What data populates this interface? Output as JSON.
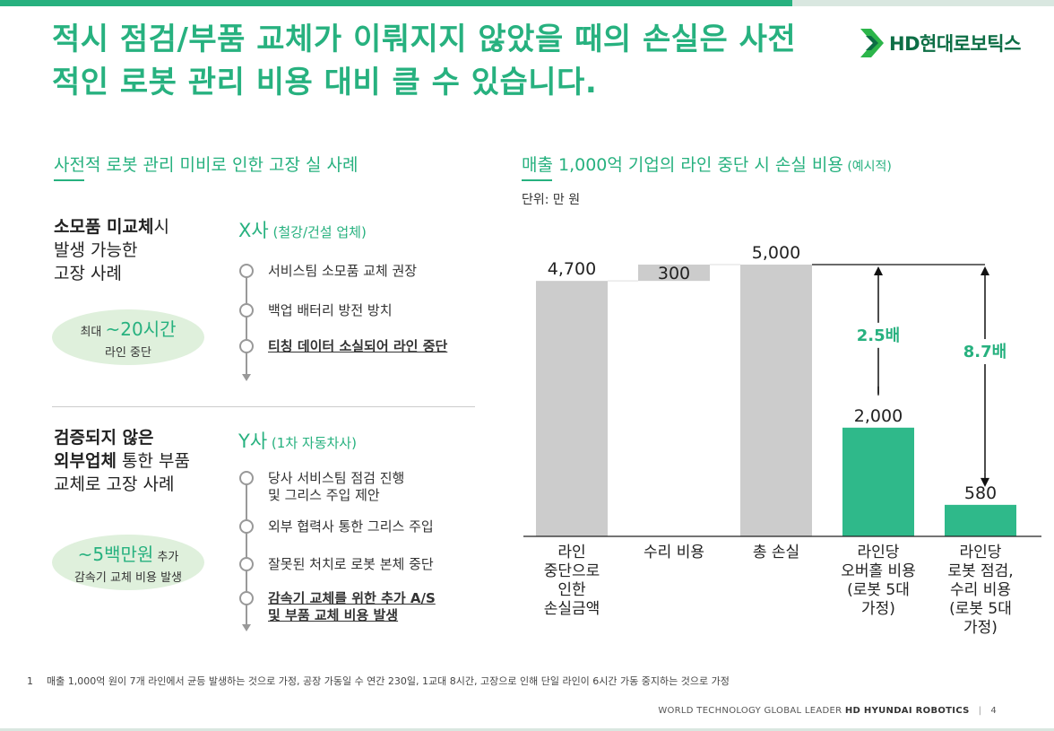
{
  "headline": "적시 점검/부품 교체가 이뤄지지 않았을 때의 손실은 사전적인 로봇 관리 비용 대비 클 수 있습니다.",
  "logo": {
    "text": "HD현대로보틱스",
    "colors": {
      "light": "#2cb54a",
      "dark": "#0d6e45"
    }
  },
  "left": {
    "title": "사전적 로봇 관리 미비로 인한 고장 실 사례",
    "case1": {
      "desc_bold": "소모품 미교체",
      "desc_rest1": "시",
      "desc_line2": "발생 가능한",
      "desc_line3": "고장 사례",
      "pill_prefix": "최대 ",
      "pill_big": "~20시간",
      "pill_line2": "라인 중단",
      "company": "X사",
      "company_sub": " (철강/건설 업체)",
      "steps": [
        "서비스팀 소모품 교체 권장",
        "백업 배터리 방전 방치",
        "티칭 데이터 소실되어 라인 중단"
      ]
    },
    "case2": {
      "desc_bold1": "검증되지 않은",
      "desc_bold2": "외부업체",
      "desc_rest2": " 통한 부품",
      "desc_line3": "교체로 고장 사례",
      "pill_big": "~5백만원",
      "pill_suffix": " 추가",
      "pill_line2": "감속기 교체 비용 발생",
      "company": "Y사",
      "company_sub": " (1차 자동차사)",
      "steps": [
        {
          "line1": "당사 서비스팀 점검 진행",
          "line2": "및 그리스 주입 제안"
        },
        {
          "line1": "외부 협력사 통한 그리스 주입",
          "line2": ""
        },
        {
          "line1": "잘못된 처치로 로봇 본체 중단",
          "line2": ""
        },
        {
          "line1": "감속기 교체를 위한 추가 A/S",
          "line2": "및 부품 교체 비용 발생"
        }
      ]
    }
  },
  "right": {
    "title": "매출 1,000억 기업의 라인 중단 시 손실 비용",
    "title_small": " (예시적)",
    "unit": "단위: 만 원"
  },
  "chart_data": {
    "type": "bar",
    "subtype": "waterfall",
    "categories": [
      [
        "라인",
        "중단으로",
        "인한",
        "손실금액"
      ],
      [
        "수리 비용"
      ],
      [
        "총 손실"
      ],
      [
        "라인당",
        "오버홀 비용",
        "(로봇 5대",
        "가정)"
      ],
      [
        "라인당",
        "로봇 점검,",
        "수리 비용",
        "(로봇 5대",
        "가정)"
      ]
    ],
    "bars": [
      {
        "base": 0,
        "value": 4700,
        "label": "4,700",
        "color": "#cccccc"
      },
      {
        "base": 4700,
        "value": 300,
        "label": "300",
        "color": "#cccccc"
      },
      {
        "base": 0,
        "value": 5000,
        "label": "5,000",
        "color": "#cccccc"
      },
      {
        "base": 0,
        "value": 2000,
        "label": "2,000",
        "color": "#2fb98a"
      },
      {
        "base": 0,
        "value": 580,
        "label": "580",
        "color": "#2fb98a"
      }
    ],
    "ylim": [
      0,
      5000
    ],
    "grid": false,
    "annotations": [
      {
        "label": "2.5배",
        "from_value": 5000,
        "to_value": 2000,
        "bar_index": 3
      },
      {
        "label": "8.7배",
        "from_value": 5000,
        "to_value": 580,
        "bar_index": 4
      }
    ],
    "accent": "#27b17f"
  },
  "footnote": {
    "num": "1",
    "text": "매출 1,000억 원이 7개 라인에서 균등 발생하는 것으로 가정, 공장 가동일 수 연간 230일, 1교대 8시간, 고장으로 인해 단일 라인이 6시간 가동 중지하는 것으로 가정"
  },
  "footer": {
    "left": "WORLD TECHNOLOGY GLOBAL LEADER ",
    "brand": "HD HYUNDAI ROBOTICS",
    "sep": "|",
    "page": "4"
  }
}
